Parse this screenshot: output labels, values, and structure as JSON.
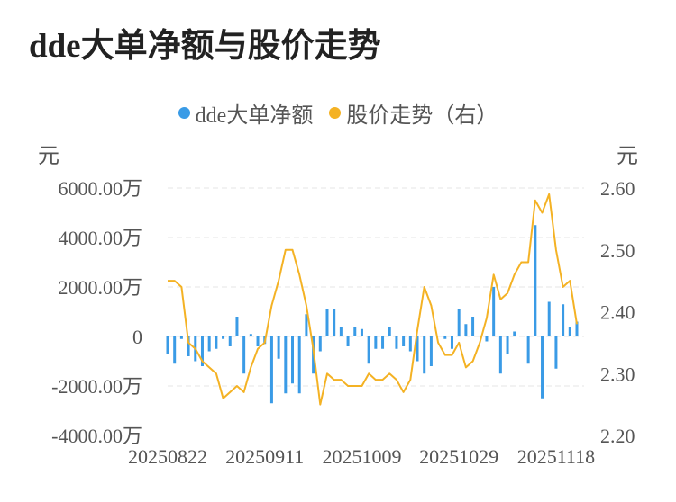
{
  "chart_data": {
    "type": "bar+line",
    "title": "dde大单净额与股价走势",
    "units": {
      "left": "元",
      "right": "元"
    },
    "legend": [
      {
        "name": "dde大单净额",
        "color": "#3a9be6"
      },
      {
        "name": "股价走势（右）",
        "color": "#f4b224"
      }
    ],
    "left_axis": {
      "ticks": [
        -4000,
        -2000,
        0,
        2000,
        4000,
        6000
      ],
      "tick_labels": [
        "-4000.00万",
        "-2000.00万",
        "0",
        "2000.00万",
        "4000.00万",
        "6000.00万"
      ],
      "ylim": [
        -4000,
        6000
      ]
    },
    "right_axis": {
      "ticks": [
        2.2,
        2.3,
        2.4,
        2.5,
        2.6
      ],
      "tick_labels": [
        "2.20",
        "2.30",
        "2.40",
        "2.50",
        "2.60"
      ],
      "ylim": [
        2.2,
        2.6
      ]
    },
    "x_tick_labels": [
      "20250822",
      "20250911",
      "20251009",
      "20251029",
      "20251118"
    ],
    "x_tick_indices": [
      0,
      14,
      28,
      42,
      56
    ],
    "n_points": 60,
    "series": [
      {
        "name": "dde大单净额",
        "type": "bar",
        "unit": "万",
        "values": [
          -700,
          -1100,
          -100,
          -800,
          -1000,
          -1200,
          -600,
          -500,
          -100,
          -400,
          800,
          -1500,
          100,
          -400,
          -300,
          -2700,
          -900,
          -2300,
          -1900,
          -2300,
          900,
          -1500,
          -600,
          1100,
          1100,
          400,
          -400,
          400,
          300,
          -1100,
          -500,
          -500,
          400,
          -500,
          -400,
          -600,
          -1000,
          -1500,
          -1200,
          0,
          -100,
          -500,
          1100,
          500,
          800,
          0,
          -200,
          2000,
          -1500,
          -700,
          200,
          0,
          -1100,
          4500,
          -2500,
          1400,
          -1300,
          1300,
          400,
          600
        ]
      },
      {
        "name": "股价走势（右）",
        "type": "line",
        "values": [
          2.45,
          2.45,
          2.44,
          2.35,
          2.34,
          2.32,
          2.31,
          2.3,
          2.26,
          2.27,
          2.28,
          2.27,
          2.31,
          2.34,
          2.35,
          2.41,
          2.45,
          2.5,
          2.5,
          2.46,
          2.41,
          2.34,
          2.25,
          2.3,
          2.29,
          2.29,
          2.28,
          2.28,
          2.28,
          2.3,
          2.29,
          2.29,
          2.3,
          2.29,
          2.27,
          2.29,
          2.37,
          2.44,
          2.41,
          2.35,
          2.33,
          2.33,
          2.35,
          2.31,
          2.32,
          2.35,
          2.39,
          2.46,
          2.42,
          2.43,
          2.46,
          2.48,
          2.48,
          2.58,
          2.56,
          2.59,
          2.5,
          2.44,
          2.45,
          2.38
        ]
      }
    ]
  }
}
